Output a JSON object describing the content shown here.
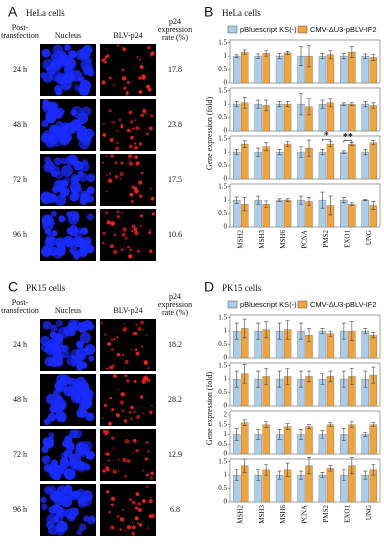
{
  "panels": {
    "A": {
      "label": "A",
      "title": "HeLa cells",
      "header": {
        "time": [
          "Post-",
          "transfection"
        ],
        "nucleus": "Nucleus",
        "p24": "BLV-p24",
        "rate": [
          "p24",
          "expression",
          "rate (%)"
        ]
      },
      "rows": [
        {
          "time": "24 h",
          "rate": 17.8
        },
        {
          "time": "48 h",
          "rate": 23.8
        },
        {
          "time": "72 h",
          "rate": 17.5
        },
        {
          "time": "96 h",
          "rate": 10.6
        }
      ]
    },
    "B": {
      "label": "B",
      "title": "HeLa cells",
      "ylabel": "Gene expression (fold)"
    },
    "C": {
      "label": "C",
      "title": "PK15 cells",
      "header": {
        "time": [
          "Post-",
          "transfection"
        ],
        "nucleus": "Nucleus",
        "p24": "BLV-p24",
        "rate": [
          "p24",
          "expression",
          "rate (%)"
        ]
      },
      "rows": [
        {
          "time": "24 h",
          "rate": 18.2
        },
        {
          "time": "48 h",
          "rate": 28.2
        },
        {
          "time": "72 h",
          "rate": 12.9
        },
        {
          "time": "96 h",
          "rate": 6.8
        }
      ]
    },
    "D": {
      "label": "D",
      "title": "PK15 cells",
      "ylabel": "Gene expression (fold)"
    }
  },
  "chart_data": [
    {
      "type": "bar",
      "ylim": [
        0,
        1.6
      ],
      "yticks": [
        0,
        0.5,
        1,
        1.5
      ],
      "series": [
        {
          "name": "pBluescript KS(-)",
          "color": "#a9cdea",
          "values": [
            1,
            1,
            1,
            1,
            1,
            1,
            1
          ],
          "errors": [
            0.05,
            0.08,
            0.1,
            0.35,
            0.1,
            0.1,
            0.08
          ]
        },
        {
          "name": "CMV-ΔU3-pBLV-IF2",
          "color": "#f2a33a",
          "values": [
            1.15,
            1.1,
            1.12,
            1.0,
            1.05,
            1.15,
            0.95
          ],
          "errors": [
            0.08,
            0.1,
            0.06,
            0.4,
            0.15,
            0.2,
            0.12
          ]
        }
      ]
    },
    {
      "type": "bar",
      "ylim": [
        0,
        1.6
      ],
      "yticks": [
        0,
        0.5,
        1,
        1.5
      ],
      "series": [
        {
          "color": "#a9cdea",
          "values": [
            1,
            1,
            1,
            1,
            1,
            1,
            1
          ],
          "errors": [
            0.1,
            0.15,
            0.1,
            0.4,
            0.15,
            0.05,
            0.1
          ]
        },
        {
          "color": "#f2a33a",
          "values": [
            1.05,
            0.95,
            1.0,
            0.9,
            1.05,
            1.0,
            0.95
          ],
          "errors": [
            0.2,
            0.2,
            0.1,
            0.3,
            0.15,
            0.05,
            0.1
          ]
        }
      ]
    },
    {
      "type": "bar",
      "ylim": [
        0,
        1.6
      ],
      "yticks": [
        0,
        0.5,
        1,
        1.5
      ],
      "series": [
        {
          "color": "#a9cdea",
          "values": [
            1,
            1,
            1,
            1,
            1,
            1,
            1
          ],
          "errors": [
            0.1,
            0.15,
            0.1,
            0.2,
            0.1,
            0.05,
            0.1
          ]
        },
        {
          "color": "#f2a33a",
          "values": [
            1.3,
            1.2,
            1.3,
            1.15,
            1.3,
            1.3,
            1.35
          ],
          "errors": [
            0.12,
            0.15,
            0.1,
            0.3,
            0.1,
            0.05,
            0.08
          ]
        }
      ],
      "annotations": [
        {
          "text": "*",
          "category": "PMS2"
        },
        {
          "text": "**",
          "category": "EXO1"
        }
      ]
    },
    {
      "type": "bar",
      "ylim": [
        0,
        1.6
      ],
      "yticks": [
        0,
        0.5,
        1,
        1.5
      ],
      "categories": [
        "MSH2",
        "MSH3",
        "MSH6",
        "PCNA",
        "PMS2",
        "EXO1",
        "UNG"
      ],
      "series": [
        {
          "color": "#a9cdea",
          "values": [
            1,
            1,
            1,
            1,
            1,
            1,
            1
          ],
          "errors": [
            0.12,
            0.15,
            0.05,
            0.15,
            0.3,
            0.1,
            0.02
          ]
        },
        {
          "color": "#f2a33a",
          "values": [
            0.85,
            0.85,
            1.0,
            0.95,
            0.8,
            0.85,
            0.8
          ],
          "errors": [
            0.25,
            0.12,
            0.05,
            0.15,
            0.35,
            0.05,
            0.15
          ]
        }
      ]
    },
    {
      "type": "bar",
      "ylim": [
        0,
        1.6
      ],
      "yticks": [
        0,
        0.5,
        1,
        1.5
      ],
      "series": [
        {
          "name": "pBluescript KS(-)",
          "color": "#a9cdea",
          "values": [
            1,
            1,
            1,
            1,
            1,
            1,
            1
          ],
          "errors": [
            0.3,
            0.3,
            0.3,
            0.3,
            0.1,
            0.3,
            0.1
          ]
        },
        {
          "name": "CMV-ΔU3-pBLV-IF2",
          "color": "#f2a33a",
          "values": [
            1.1,
            1.05,
            1.05,
            0.85,
            0.9,
            1.0,
            0.85
          ],
          "errors": [
            0.35,
            0.3,
            0.35,
            0.25,
            0.1,
            0.35,
            0.1
          ]
        }
      ]
    },
    {
      "type": "bar",
      "ylim": [
        0,
        1.6
      ],
      "yticks": [
        0,
        0.5,
        1,
        1.5
      ],
      "series": [
        {
          "color": "#a9cdea",
          "values": [
            1,
            1,
            1,
            1,
            1,
            1,
            1
          ],
          "errors": [
            0.3,
            0.3,
            0.3,
            0.3,
            0.2,
            0.3,
            0.3
          ]
        },
        {
          "color": "#f2a33a",
          "values": [
            1.2,
            1.1,
            1.1,
            1.1,
            1.1,
            1.1,
            1.15
          ],
          "errors": [
            0.35,
            0.3,
            0.3,
            0.2,
            0.2,
            0.3,
            0.3
          ]
        }
      ]
    },
    {
      "type": "bar",
      "ylim": [
        0,
        2.2
      ],
      "yticks": [
        0,
        0.5,
        1,
        1.5,
        2
      ],
      "series": [
        {
          "color": "#a9cdea",
          "values": [
            1,
            1,
            1,
            1,
            1,
            1,
            1
          ],
          "errors": [
            0.3,
            0.25,
            0.25,
            0.25,
            0.2,
            0.3,
            0.1
          ]
        },
        {
          "color": "#f2a33a",
          "values": [
            1.6,
            1.5,
            1.4,
            1.4,
            1.5,
            1.5,
            1.5
          ],
          "errors": [
            0.15,
            0.15,
            0.15,
            0.1,
            0.1,
            0.15,
            0.1
          ]
        }
      ]
    },
    {
      "type": "bar",
      "ylim": [
        0,
        1.6
      ],
      "yticks": [
        0,
        0.5,
        1,
        1.5
      ],
      "categories": [
        "MSH2",
        "MSH3",
        "MSH6",
        "PCNA",
        "PMS2",
        "EXO1",
        "UNG"
      ],
      "series": [
        {
          "color": "#a9cdea",
          "values": [
            1,
            1,
            1,
            1,
            1,
            1,
            1
          ],
          "errors": [
            0.2,
            0.2,
            0.15,
            0.15,
            0.1,
            0.2,
            0.15
          ]
        },
        {
          "color": "#f2a33a",
          "values": [
            1.35,
            1.2,
            1.2,
            1.35,
            1.25,
            1.35,
            1.2
          ],
          "errors": [
            0.25,
            0.2,
            0.25,
            0.3,
            0.1,
            0.3,
            0.2
          ]
        }
      ]
    }
  ]
}
